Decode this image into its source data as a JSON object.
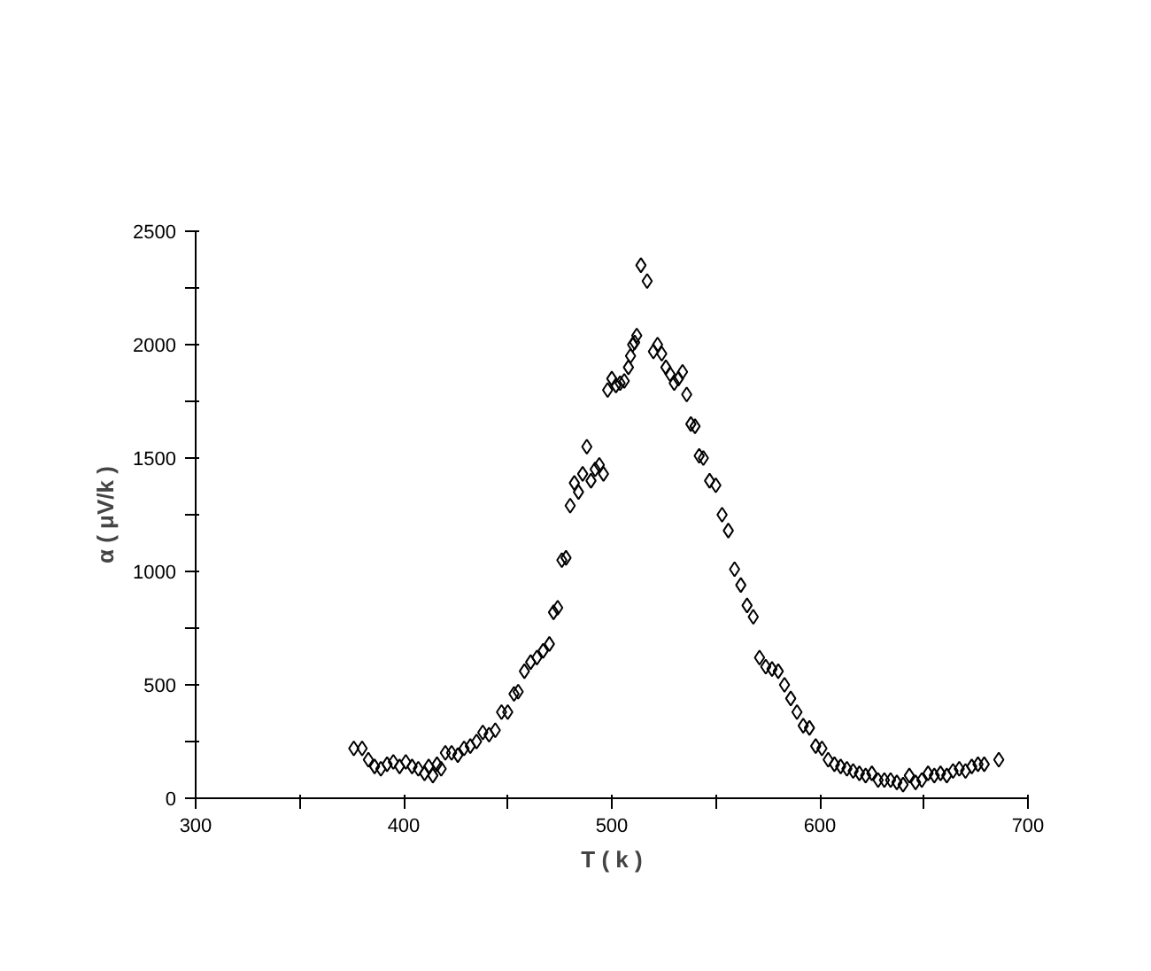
{
  "chart_data": {
    "type": "scatter",
    "xlabel": "T ( k )",
    "ylabel": "α ( μV/k )",
    "marker": "diamond",
    "grid": false,
    "xlim": [
      300,
      700
    ],
    "ylim": [
      0,
      2500
    ],
    "xticks": [
      300,
      {
        "value": 350,
        "label": null
      },
      400,
      {
        "value": 450,
        "label": null
      },
      500,
      {
        "value": 550,
        "label": null
      },
      600,
      {
        "value": 650,
        "label": null
      },
      700
    ],
    "yticks": [
      0,
      {
        "value": 250,
        "label": null
      },
      500,
      {
        "value": 750,
        "label": null
      },
      1000,
      {
        "value": 1250,
        "label": null
      },
      1500,
      {
        "value": 1750,
        "label": null
      },
      2000,
      {
        "value": 2250,
        "label": null
      },
      2500
    ],
    "series": [
      {
        "color": "#000000",
        "x": [
          376,
          380,
          383,
          386,
          389,
          392,
          395,
          398,
          401,
          404,
          407,
          410,
          412,
          414,
          416,
          418,
          420,
          423,
          426,
          429,
          432,
          435,
          438,
          441,
          444,
          447,
          450,
          453,
          455,
          458,
          461,
          464,
          467,
          470,
          472,
          474,
          476,
          478,
          480,
          482,
          484,
          486,
          488,
          490,
          492,
          494,
          496,
          498,
          500,
          502,
          504,
          506,
          508,
          509,
          510,
          511,
          512,
          514,
          517,
          520,
          522,
          524,
          526,
          528,
          530,
          532,
          534,
          536,
          538,
          540,
          542,
          544,
          547,
          550,
          553,
          556,
          559,
          562,
          565,
          568,
          571,
          574,
          577,
          580,
          583,
          586,
          589,
          592,
          595,
          598,
          601,
          604,
          607,
          610,
          613,
          616,
          619,
          622,
          625,
          628,
          631,
          634,
          637,
          640,
          643,
          646,
          649,
          652,
          655,
          658,
          661,
          664,
          667,
          670,
          673,
          676,
          679,
          686
        ],
        "values": [
          220,
          220,
          170,
          140,
          130,
          150,
          160,
          140,
          160,
          140,
          130,
          110,
          140,
          100,
          150,
          130,
          200,
          200,
          190,
          220,
          230,
          250,
          290,
          280,
          300,
          380,
          380,
          460,
          470,
          560,
          600,
          620,
          650,
          680,
          820,
          840,
          1050,
          1060,
          1290,
          1390,
          1350,
          1430,
          1550,
          1400,
          1450,
          1470,
          1430,
          1800,
          1850,
          1820,
          1830,
          1840,
          1900,
          1950,
          2000,
          2010,
          2040,
          2350,
          2280,
          1970,
          2000,
          1960,
          1900,
          1870,
          1830,
          1850,
          1880,
          1780,
          1650,
          1640,
          1510,
          1500,
          1400,
          1380,
          1250,
          1180,
          1010,
          940,
          850,
          800,
          620,
          580,
          570,
          560,
          500,
          440,
          380,
          320,
          310,
          230,
          220,
          170,
          150,
          140,
          130,
          120,
          110,
          100,
          110,
          80,
          80,
          80,
          70,
          60,
          100,
          70,
          80,
          110,
          100,
          110,
          100,
          120,
          130,
          120,
          140,
          150,
          150,
          170
        ]
      }
    ]
  }
}
